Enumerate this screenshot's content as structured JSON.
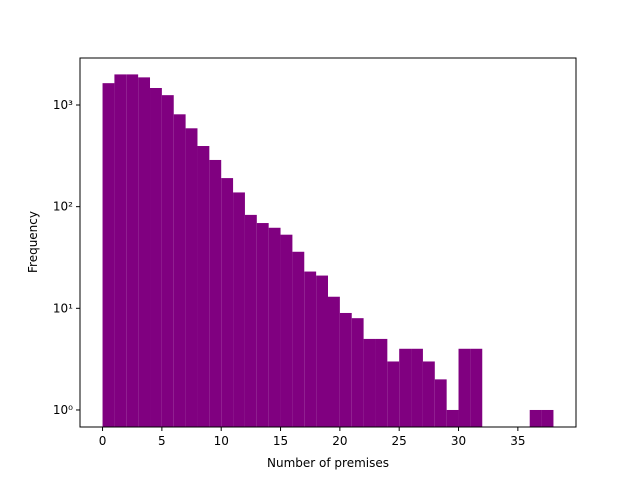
{
  "chart_data": {
    "type": "histogram",
    "xlabel": "Number of premises",
    "ylabel": "Frequency",
    "bins": [
      0,
      1,
      2,
      3,
      4,
      5,
      6,
      7,
      8,
      9,
      10,
      11,
      12,
      13,
      14,
      15,
      16,
      17,
      18,
      19,
      20,
      21,
      22,
      23,
      24,
      25,
      26,
      27,
      28,
      29,
      30,
      31,
      32,
      33,
      34,
      35,
      36,
      37,
      38
    ],
    "values": [
      1640,
      2000,
      2000,
      1870,
      1470,
      1250,
      810,
      590,
      395,
      288,
      191,
      138,
      83,
      69,
      62,
      53,
      36,
      23,
      21,
      13,
      9,
      8,
      5,
      5,
      3,
      4,
      4,
      3,
      2,
      1,
      4,
      4,
      0,
      0,
      0,
      0,
      1,
      1
    ],
    "color": "#800080",
    "xlim": [
      -1.9,
      39.9
    ],
    "xticks": [
      0,
      5,
      10,
      15,
      20,
      25,
      30,
      35
    ],
    "ylim": [
      0.68,
      2900
    ],
    "log_y": true,
    "yticks": [
      {
        "value": 1,
        "label": "10⁰"
      },
      {
        "value": 10,
        "label": "10¹"
      },
      {
        "value": 100,
        "label": "10²"
      },
      {
        "value": 1000,
        "label": "10³"
      }
    ]
  }
}
